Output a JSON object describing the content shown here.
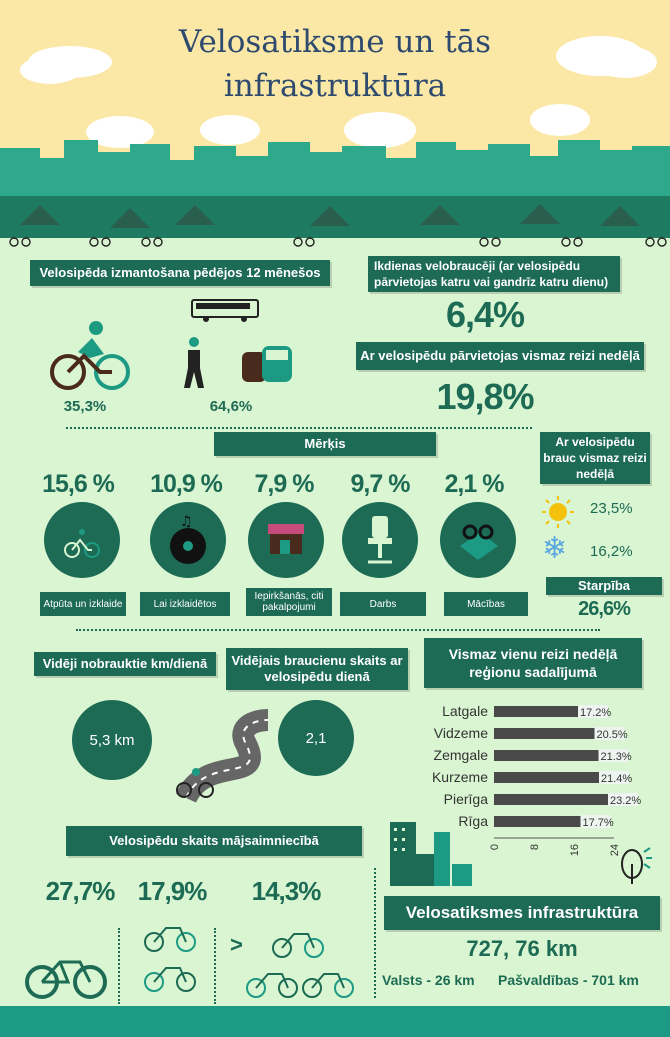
{
  "title_line1": "Velosatiksme un tās",
  "title_line2": "infrastruktūra",
  "usage": {
    "heading": "Velosipēda izmantošana pēdējos 12 mēnešos",
    "cyclists_pct": "35,3%",
    "others_pct": "64,6%"
  },
  "daily": {
    "heading": "Ikdienas velobraucēji (ar velosipēdu pārvietojas katru vai gandrīz katru dienu)",
    "value": "6,4%",
    "weekly_heading": "Ar velosipēdu pārvietojas vismaz reizi nedēļā",
    "weekly_value": "19,8%"
  },
  "goals": {
    "heading": "Mērķis",
    "items": [
      {
        "pct": "15,6 %",
        "label": "Atpūta un izklaide",
        "icon": "bicycle-icon"
      },
      {
        "pct": "10,9 %",
        "label": "Lai izklaidētos",
        "icon": "vinyl-record-icon"
      },
      {
        "pct": "7,9 %",
        "label": "Iepirkšanās, citi pakalpojumi",
        "icon": "shop-icon"
      },
      {
        "pct": "9,7 %",
        "label": "Darbs",
        "icon": "office-chair-icon"
      },
      {
        "pct": "2,1 %",
        "label": "Mācības",
        "icon": "glasses-book-icon"
      }
    ]
  },
  "season": {
    "heading": "Ar velosipēdu brauc vismaz reizi nedēļā",
    "summer": "23,5%",
    "winter": "16,2%",
    "diff_label": "Starpība",
    "diff_value": "26,6%"
  },
  "km": {
    "heading": "Vidēji nobrauktie km/dienā",
    "value": "5,3 km"
  },
  "trips": {
    "heading": "Vidējais braucienu skaits ar velosipēdu dienā",
    "value": "2,1"
  },
  "regions": {
    "heading": "Vismaz vienu reizi nedēļā reģionu sadalījumā",
    "chart_data": {
      "type": "bar",
      "orientation": "horizontal",
      "categories": [
        "Latgale",
        "Vidzeme",
        "Zemgale",
        "Kurzeme",
        "Pierīga",
        "Rīga"
      ],
      "values": [
        17.2,
        20.5,
        21.3,
        21.4,
        23.2,
        17.7
      ],
      "value_labels": [
        "17.2%",
        "20.5%",
        "21.3%",
        "21.4%",
        "23.2%",
        "17.7%"
      ],
      "ticks": [
        "0",
        "8",
        "16",
        "24"
      ],
      "xlim": [
        0,
        24
      ]
    }
  },
  "household": {
    "heading": "Velosipēdu skaits mājsaimniecībā",
    "one": "27,7%",
    "two": "17,9%",
    "more": "14,3%",
    "more_symbol": ">"
  },
  "infra": {
    "heading": "Velosatiksmes infrastruktūra",
    "total": "727, 76 km",
    "state": "Valsts - 26 km",
    "municipal": "Pašvaldības - 701 km"
  },
  "colors": {
    "primary": "#1d6b54",
    "accent": "#1d9a83",
    "bg": "#d9f5d1",
    "sky": "#fbe8a6"
  }
}
